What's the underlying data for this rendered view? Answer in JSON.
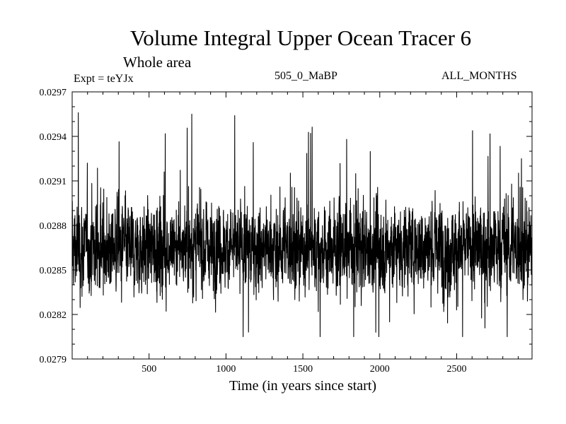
{
  "header": {
    "title": "Volume Integral Upper Ocean Tracer 6",
    "subtitle": "Whole area",
    "expt": "Expt = teYJx",
    "center_label": "505_0_MaBP",
    "right_label": "ALL_MONTHS"
  },
  "chart_data": {
    "type": "line",
    "title": "Volume Integral Upper Ocean Tracer 6",
    "subtitle": "Whole area",
    "xlabel": "Time (in years since start)",
    "ylabel": "",
    "xlim": [
      0,
      2990
    ],
    "ylim": [
      0.0279,
      0.0297
    ],
    "xticks": [
      500,
      1000,
      1500,
      2000,
      2500
    ],
    "xtick_labels": [
      "500",
      "1000",
      "1500",
      "2000",
      "2500"
    ],
    "yticks": [
      0.0279,
      0.0282,
      0.0285,
      0.0288,
      0.0291,
      0.0294,
      0.0297
    ],
    "ytick_labels": [
      "0.0279",
      "0.0282",
      "0.0285",
      "0.0288",
      "0.0291",
      "0.0294",
      "0.0297"
    ],
    "series": [
      {
        "name": "Volume integral upper ocean tracer 6",
        "mean": 0.02865,
        "typical_range": [
          0.02835,
          0.02895
        ],
        "min": 0.02805,
        "max": 0.02956,
        "notable_points": [
          {
            "x": 40,
            "y": 0.02956
          },
          {
            "x": 780,
            "y": 0.02955
          },
          {
            "x": 1060,
            "y": 0.02954
          },
          {
            "x": 1790,
            "y": 0.02938
          },
          {
            "x": 2930,
            "y": 0.02925
          },
          {
            "x": 2000,
            "y": 0.02805
          },
          {
            "x": 1980,
            "y": 0.02808
          },
          {
            "x": 2070,
            "y": 0.02815
          }
        ]
      }
    ]
  }
}
